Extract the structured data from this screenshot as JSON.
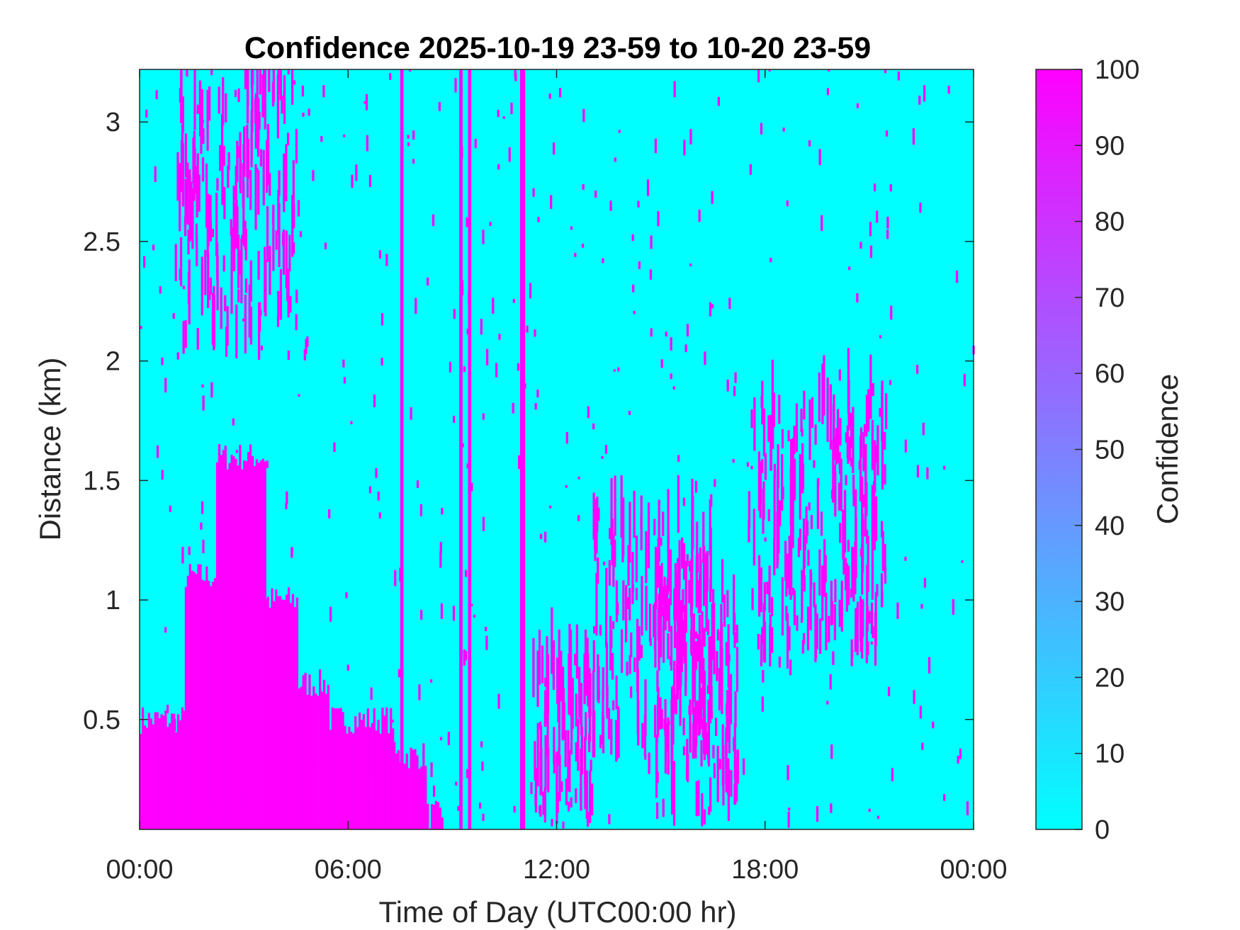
{
  "chart_data": {
    "type": "heatmap",
    "title": "Confidence 2025-10-19 23-59 to 10-20 23-59",
    "xlabel": "Time of Day (UTC00:00 hr)",
    "ylabel": "Distance (km)",
    "x_ticks": [
      "00:00",
      "06:00",
      "12:00",
      "18:00",
      "00:00"
    ],
    "x_tick_hours": [
      0,
      6,
      12,
      18,
      24
    ],
    "xlim_hours": [
      0,
      24
    ],
    "y_ticks": [
      "0.5",
      "1",
      "1.5",
      "2",
      "2.5",
      "3"
    ],
    "y_tick_values": [
      0.5,
      1,
      1.5,
      2,
      2.5,
      3
    ],
    "ylim_km": [
      0.04,
      3.22
    ],
    "colorbar": {
      "label": "Confidence",
      "ticks": [
        "0",
        "10",
        "20",
        "30",
        "40",
        "50",
        "60",
        "70",
        "80",
        "90",
        "100"
      ],
      "range": [
        0,
        100
      ],
      "low_color": "#00ffff",
      "high_color": "#ff00ff"
    },
    "high_confidence_regions": [
      {
        "hours": [
          0.0,
          1.3
        ],
        "top_km": 0.5
      },
      {
        "hours": [
          1.3,
          2.2
        ],
        "top_km": 1.1
      },
      {
        "hours": [
          2.2,
          3.6
        ],
        "top_km": 1.6
      },
      {
        "hours": [
          3.6,
          4.5
        ],
        "top_km": 1.0
      },
      {
        "hours": [
          4.5,
          5.4
        ],
        "top_km": 0.65
      },
      {
        "hours": [
          5.4,
          7.3
        ],
        "top_km": 0.5
      },
      {
        "hours": [
          7.3,
          8.2
        ],
        "top_km": 0.35
      },
      {
        "hours": [
          8.2,
          8.7
        ],
        "top_km": 0.1
      }
    ],
    "full_height_streaks_hours": [
      7.5,
      9.2,
      9.45,
      10.95,
      11.0
    ],
    "scattered_features": [
      {
        "hours": [
          11.3,
          13.0
        ],
        "km": [
          0.05,
          0.7
        ]
      },
      {
        "hours": [
          13.0,
          16.5
        ],
        "km": [
          0.3,
          1.3
        ]
      },
      {
        "hours": [
          14.8,
          17.2
        ],
        "km": [
          0.05,
          1.0
        ]
      },
      {
        "hours": [
          17.5,
          21.5
        ],
        "km": [
          0.7,
          1.8
        ]
      },
      {
        "hours": [
          1.0,
          4.5
        ],
        "km": [
          2.0,
          3.2
        ]
      }
    ]
  }
}
